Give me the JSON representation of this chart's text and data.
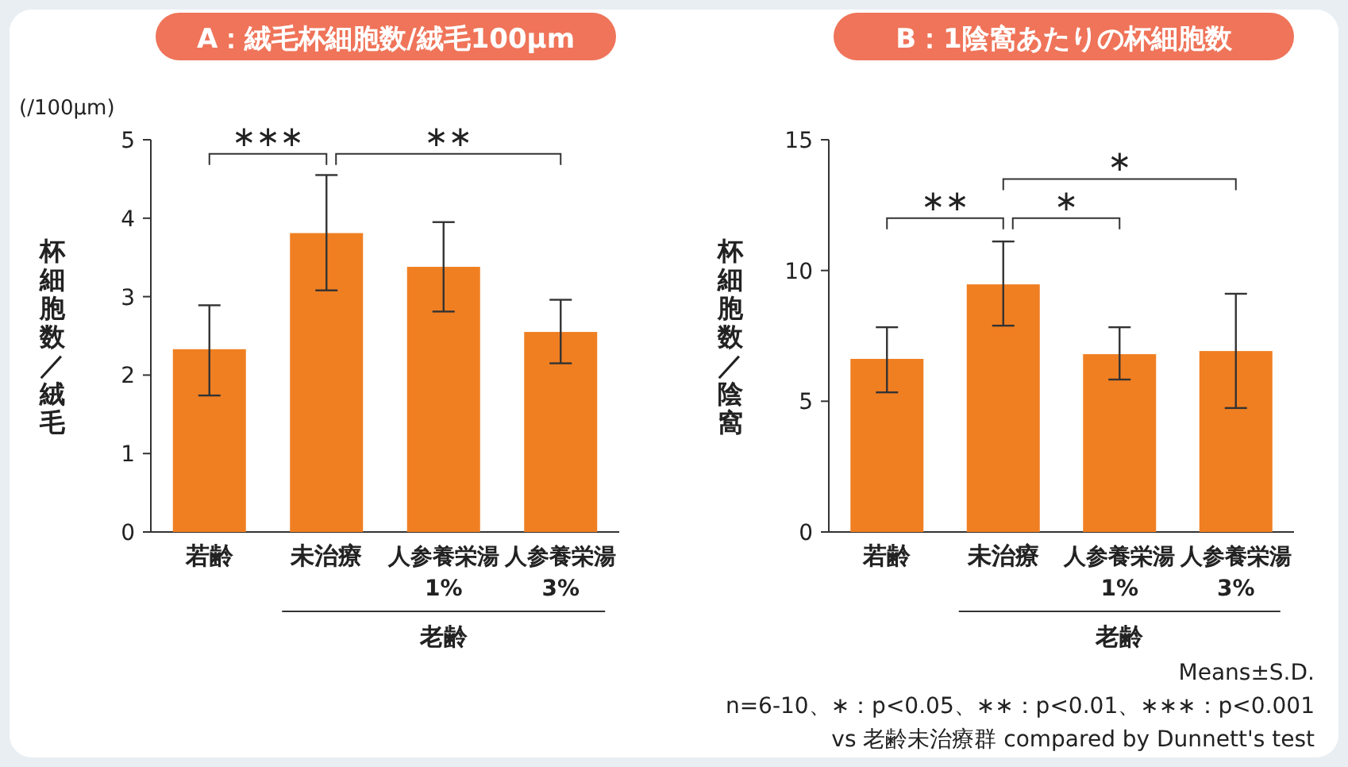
{
  "chart_data": [
    {
      "type": "bar",
      "title": "A：絨毛杯細胞数/絨毛100μm",
      "ylabel": "杯細胞数／絨毛",
      "categories": [
        "若齢",
        "未治療",
        "人参養栄湯\n1%",
        "人参養栄湯\n3%"
      ],
      "values": [
        2.33,
        3.81,
        3.38,
        2.55
      ],
      "errors": [
        [
          1.74,
          2.89
        ],
        [
          3.08,
          4.55
        ],
        [
          2.81,
          3.95
        ],
        [
          2.15,
          2.96
        ]
      ],
      "color": "#f07f22",
      "ylim": [
        0,
        5
      ],
      "yticks": [
        0,
        1,
        2,
        3,
        4,
        5
      ],
      "annotations": [
        "(/100μm)",
        "∗∗∗",
        "∗∗",
        "老齢"
      ]
    },
    {
      "type": "bar",
      "title": "B：1陰窩あたりの杯細胞数",
      "ylabel": "杯細胞数／陰窩",
      "categories": [
        "若齢",
        "未治療",
        "人参養栄湯\n1%",
        "人参養栄湯\n3%"
      ],
      "values": [
        6.62,
        9.47,
        6.8,
        6.92
      ],
      "errors": [
        [
          5.34,
          7.83
        ],
        [
          7.89,
          11.11
        ],
        [
          5.83,
          7.83
        ],
        [
          4.74,
          9.11
        ]
      ],
      "color": "#f07f22",
      "ylim": [
        0,
        15
      ],
      "yticks": [
        0,
        5,
        10,
        15
      ],
      "annotations": [
        "∗∗",
        "∗",
        "∗",
        "老齢",
        "Means±S.D.",
        "n=6-10、∗：p<0.05、∗∗：p<0.01、∗∗∗：p<0.001",
        "vs 老齢未治療群 compared by Dunnett's test"
      ]
    }
  ]
}
